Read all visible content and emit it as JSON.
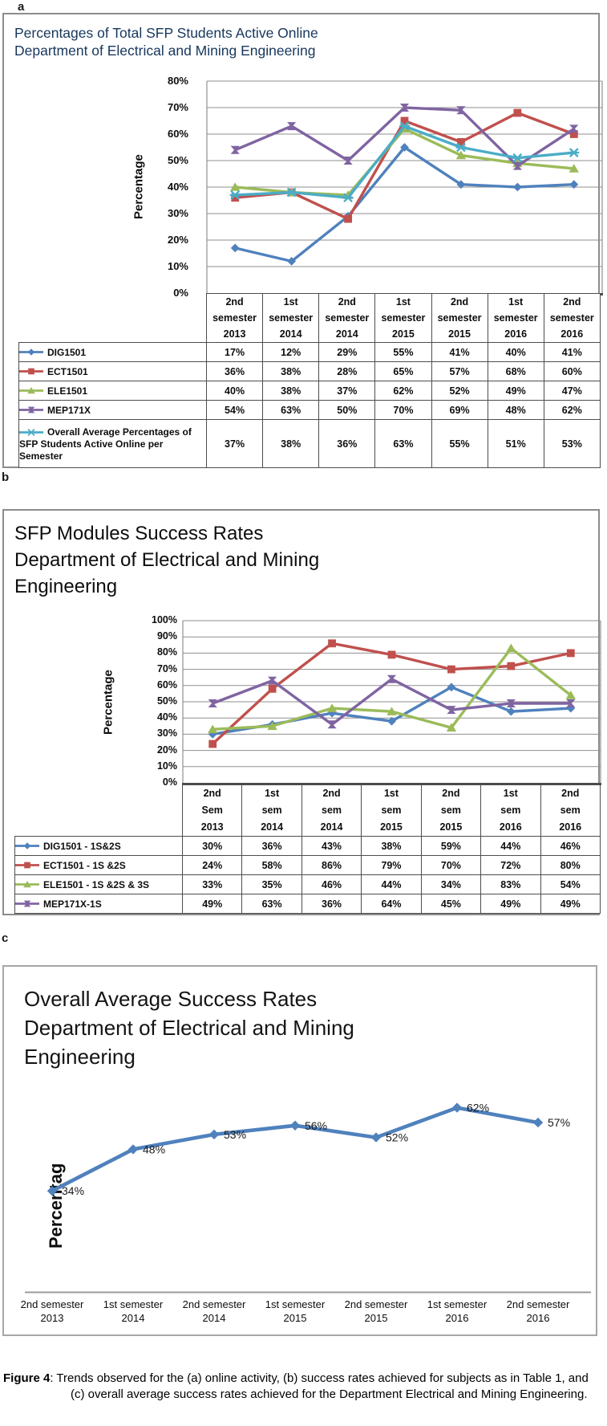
{
  "page": {
    "panels": [
      {
        "label": "a"
      },
      {
        "label": "b"
      },
      {
        "label": "c"
      }
    ],
    "caption": {
      "bold": "Figure 4",
      "rest": ": Trends observed for the (a) online activity, (b) success rates achieved for subjects as in Table 1, and (c) overall average success rates achieved for the Department Electrical and Mining  Engineering."
    }
  },
  "colors": {
    "series_blue": "#4F81BD",
    "series_red": "#C0504D",
    "series_green": "#9BBB59",
    "series_purple": "#8064A2",
    "series_cyan": "#4BACC6",
    "gridline": "#8f8f8f",
    "axis": "#4a4a4a",
    "title_a": "#17375D"
  },
  "chart_data": [
    {
      "panel": "a",
      "type": "line",
      "title_lines": [
        "Percentages of Total SFP Students Active Online",
        "Department of Electrical and Mining Engineering"
      ],
      "title_color": "#17375D",
      "ylabel": "Percentage",
      "ylim": [
        0,
        80
      ],
      "ytick_step": 10,
      "ytick_labels": [
        "0%",
        "10%",
        "20%",
        "30%",
        "40%",
        "50%",
        "60%",
        "70%",
        "80%"
      ],
      "grid": true,
      "legend_position": "table-left",
      "categories": [
        [
          "2nd",
          "semester",
          "2013"
        ],
        [
          "1st",
          "semester",
          "2014"
        ],
        [
          "2nd",
          "semester",
          "2014"
        ],
        [
          "1st",
          "semester",
          "2015"
        ],
        [
          "2nd",
          "semester",
          "2015"
        ],
        [
          "1st",
          "semester",
          "2016"
        ],
        [
          "2nd",
          "semester",
          "2016"
        ]
      ],
      "series": [
        {
          "name": "DIG1501",
          "marker": "diamond",
          "color": "#4F81BD",
          "values": [
            17,
            12,
            29,
            55,
            41,
            40,
            41
          ]
        },
        {
          "name": "ECT1501",
          "marker": "square",
          "color": "#C0504D",
          "values": [
            36,
            38,
            28,
            65,
            57,
            68,
            60
          ]
        },
        {
          "name": "ELE1501",
          "marker": "triangle",
          "color": "#9BBB59",
          "values": [
            40,
            38,
            37,
            62,
            52,
            49,
            47
          ]
        },
        {
          "name": "MEP171X",
          "marker": "xbar",
          "color": "#8064A2",
          "values": [
            54,
            63,
            50,
            70,
            69,
            48,
            62
          ]
        },
        {
          "name": "Overall Average Percentages of SFP Students Active Online per Semester",
          "marker": "asterisk",
          "color": "#4BACC6",
          "values": [
            37,
            38,
            36,
            63,
            55,
            51,
            53
          ]
        }
      ]
    },
    {
      "panel": "b",
      "type": "line",
      "title_lines": [
        "SFP Modules Success Rates",
        "Department of Electrical and Mining",
        "Engineering"
      ],
      "title_color": "#0d0d0d",
      "ylabel": "Percentage",
      "ylim": [
        0,
        100
      ],
      "ytick_step": 10,
      "ytick_labels": [
        "0%",
        "10%",
        "20%",
        "30%",
        "40%",
        "50%",
        "60%",
        "70%",
        "80%",
        "90%",
        "100%"
      ],
      "grid": true,
      "legend_position": "table-left",
      "categories": [
        [
          "2nd",
          "Sem",
          "2013"
        ],
        [
          "1st",
          "sem",
          "2014"
        ],
        [
          "2nd",
          "sem",
          "2014"
        ],
        [
          "1st",
          "sem",
          "2015"
        ],
        [
          "2nd",
          "sem",
          "2015"
        ],
        [
          "1st",
          "sem",
          "2016"
        ],
        [
          "2nd",
          "sem",
          "2016"
        ]
      ],
      "series": [
        {
          "name": "DIG1501 - 1S&2S",
          "marker": "diamond",
          "color": "#4F81BD",
          "values": [
            30,
            36,
            43,
            38,
            59,
            44,
            46
          ]
        },
        {
          "name": "ECT1501 - 1S &2S",
          "marker": "square",
          "color": "#C0504D",
          "values": [
            24,
            58,
            86,
            79,
            70,
            72,
            80
          ]
        },
        {
          "name": "ELE1501 - 1S &2S & 3S",
          "marker": "triangle",
          "color": "#9BBB59",
          "values": [
            33,
            35,
            46,
            44,
            34,
            83,
            54
          ]
        },
        {
          "name": "MEP171X-1S",
          "marker": "xbar",
          "color": "#8064A2",
          "values": [
            49,
            63,
            36,
            64,
            45,
            49,
            49
          ]
        }
      ]
    },
    {
      "panel": "c",
      "type": "line",
      "title_lines": [
        "Overall Average Success Rates",
        "Department of Electrical and Mining",
        "Engineering"
      ],
      "title_color": "#141414",
      "ylabel": "Percentag",
      "grid": false,
      "data_labels": [
        "34%",
        "48%",
        "53%",
        "56%",
        "52%",
        "62%",
        "57%"
      ],
      "categories": [
        [
          "2nd semester",
          "2013"
        ],
        [
          "1st semester",
          "2014"
        ],
        [
          "2nd semester",
          "2014"
        ],
        [
          "1st semester",
          "2015"
        ],
        [
          "2nd semester",
          "2015"
        ],
        [
          "1st semester",
          "2016"
        ],
        [
          "2nd semester",
          "2016"
        ]
      ],
      "series": [
        {
          "name": "Overall Average Success Rate",
          "marker": "diamond",
          "color": "#4F81BD",
          "values": [
            34,
            48,
            53,
            56,
            52,
            62,
            57
          ]
        }
      ]
    }
  ]
}
